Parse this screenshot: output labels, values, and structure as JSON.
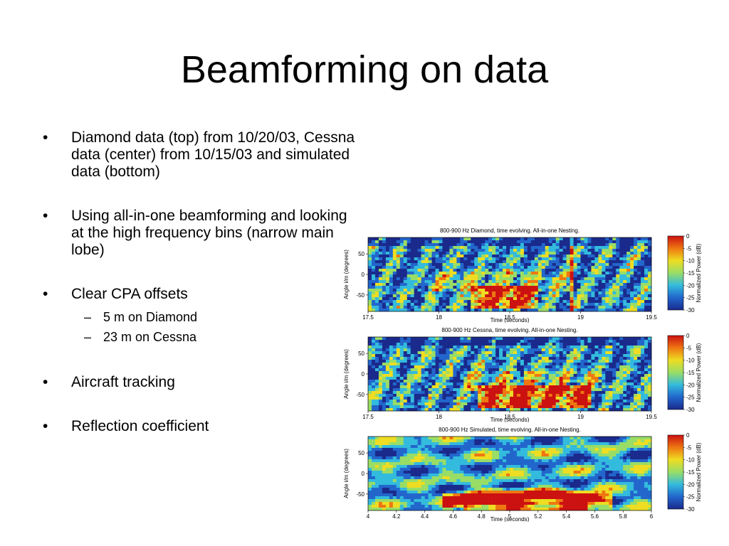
{
  "title": "Beamforming on data",
  "bullets": [
    {
      "text": "Diamond data (top) from 10/20/03, Cessna data (center) from 10/15/03 and simulated data (bottom)"
    },
    {
      "text": "Using all-in-one beamforming and looking at the high frequency bins (narrow main lobe)"
    },
    {
      "text": "Clear CPA offsets",
      "subs": [
        "5 m on Diamond",
        "23 m on Cessna"
      ]
    },
    {
      "text": "Aircraft tracking"
    },
    {
      "text": "Reflection coefficient"
    }
  ],
  "bullet_glyph": "•",
  "sub_glyph": "–",
  "colormap": [
    "#1a2a8c",
    "#2266cc",
    "#33bbdd",
    "#99dd66",
    "#eedd22",
    "#ee7711",
    "#cc1111"
  ],
  "panels": [
    {
      "title": "800-900 Hz Diamond, time evolving. All-in-one Nesting.",
      "ylabel": "Angle i/m (degrees)",
      "xlabel": "Time (seconds)",
      "yticks": [
        "50",
        "0",
        "-50"
      ],
      "xticks": [
        "17.5",
        "18",
        "18.5",
        "19",
        "19.5"
      ],
      "cbar_label": "Normalized Power (dB)",
      "cbar_ticks": [
        "0",
        "-5",
        "-10",
        "-15",
        "-20",
        "-25",
        "-30"
      ]
    },
    {
      "title": "800-900 Hz Cessna, time evolving. All-in-one Nesting.",
      "ylabel": "Angle i/m (degrees)",
      "xlabel": "Time (seconds)",
      "yticks": [
        "50",
        "0",
        "-50"
      ],
      "xticks": [
        "17.5",
        "18",
        "18.5",
        "19",
        "19.5"
      ],
      "cbar_label": "Normalized Power (dB)",
      "cbar_ticks": [
        "0",
        "-5",
        "-10",
        "-15",
        "-20",
        "-25",
        "-30"
      ]
    },
    {
      "title": "800-900 Hz Simulated, time evolving. All-in-one Nesting.",
      "ylabel": "Angle i/m (degrees)",
      "xlabel": "Time (seconds)",
      "yticks": [
        "50",
        "0",
        "-50"
      ],
      "xticks": [
        "4",
        "4.2",
        "4.4",
        "4.6",
        "4.8",
        "5",
        "5.2",
        "5.4",
        "5.6",
        "5.8",
        "6"
      ],
      "cbar_label": "Normalized Power (dB)",
      "cbar_ticks": [
        "0",
        "-5",
        "-10",
        "-15",
        "-20",
        "-25",
        "-30"
      ]
    }
  ]
}
